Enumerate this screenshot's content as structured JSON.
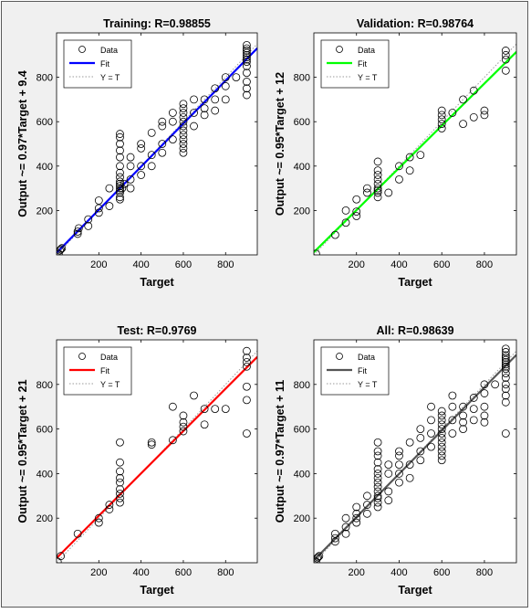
{
  "chart_data": [
    {
      "type": "scatter",
      "title": "Training: R=0.98855",
      "xlabel": "Target",
      "ylabel": "Output ~= 0.97*Target + 9.4",
      "xlim": [
        0,
        950
      ],
      "ylim": [
        0,
        1000
      ],
      "xticks": [
        "200",
        "400",
        "600",
        "800"
      ],
      "yticks": [
        "200",
        "400",
        "600",
        "800"
      ],
      "fit": {
        "slope": 0.97,
        "intercept": 9.4,
        "color": "#0000ff"
      },
      "legend": {
        "position": "top-left",
        "entries": [
          "Data",
          "Fit",
          "Y = T"
        ]
      },
      "points": [
        [
          10,
          5
        ],
        [
          15,
          20
        ],
        [
          20,
          25
        ],
        [
          25,
          30
        ],
        [
          100,
          95
        ],
        [
          100,
          105
        ],
        [
          105,
          120
        ],
        [
          150,
          130
        ],
        [
          150,
          160
        ],
        [
          200,
          190
        ],
        [
          200,
          210
        ],
        [
          200,
          245
        ],
        [
          250,
          220
        ],
        [
          250,
          300
        ],
        [
          300,
          250
        ],
        [
          300,
          260
        ],
        [
          300,
          280
        ],
        [
          300,
          290
        ],
        [
          300,
          300
        ],
        [
          300,
          310
        ],
        [
          300,
          320
        ],
        [
          300,
          330
        ],
        [
          300,
          350
        ],
        [
          300,
          370
        ],
        [
          300,
          400
        ],
        [
          300,
          440
        ],
        [
          300,
          470
        ],
        [
          300,
          500
        ],
        [
          300,
          530
        ],
        [
          300,
          545
        ],
        [
          310,
          300
        ],
        [
          320,
          320
        ],
        [
          350,
          300
        ],
        [
          350,
          340
        ],
        [
          350,
          400
        ],
        [
          350,
          440
        ],
        [
          400,
          360
        ],
        [
          400,
          400
        ],
        [
          400,
          480
        ],
        [
          400,
          500
        ],
        [
          450,
          400
        ],
        [
          450,
          450
        ],
        [
          450,
          550
        ],
        [
          500,
          460
        ],
        [
          500,
          500
        ],
        [
          500,
          580
        ],
        [
          500,
          600
        ],
        [
          550,
          520
        ],
        [
          550,
          600
        ],
        [
          550,
          640
        ],
        [
          600,
          460
        ],
        [
          600,
          480
        ],
        [
          600,
          500
        ],
        [
          600,
          520
        ],
        [
          600,
          540
        ],
        [
          600,
          560
        ],
        [
          600,
          580
        ],
        [
          600,
          600
        ],
        [
          600,
          620
        ],
        [
          600,
          640
        ],
        [
          600,
          660
        ],
        [
          600,
          680
        ],
        [
          650,
          580
        ],
        [
          650,
          640
        ],
        [
          650,
          700
        ],
        [
          700,
          630
        ],
        [
          700,
          660
        ],
        [
          700,
          700
        ],
        [
          750,
          650
        ],
        [
          750,
          700
        ],
        [
          750,
          750
        ],
        [
          800,
          700
        ],
        [
          800,
          760
        ],
        [
          800,
          800
        ],
        [
          850,
          800
        ],
        [
          900,
          720
        ],
        [
          900,
          750
        ],
        [
          900,
          780
        ],
        [
          900,
          820
        ],
        [
          900,
          850
        ],
        [
          900,
          870
        ],
        [
          900,
          880
        ],
        [
          900,
          890
        ],
        [
          900,
          900
        ],
        [
          900,
          910
        ],
        [
          900,
          920
        ],
        [
          900,
          930
        ],
        [
          900,
          945
        ]
      ]
    },
    {
      "type": "scatter",
      "title": "Validation: R=0.98764",
      "xlabel": "Target",
      "ylabel": "Output ~= 0.95*Target + 12",
      "xlim": [
        0,
        950
      ],
      "ylim": [
        0,
        1000
      ],
      "xticks": [
        "200",
        "400",
        "600",
        "800"
      ],
      "yticks": [
        "200",
        "400",
        "600",
        "800"
      ],
      "fit": {
        "slope": 0.95,
        "intercept": 12,
        "color": "#00ff00"
      },
      "legend": {
        "position": "top-left",
        "entries": [
          "Data",
          "Fit",
          "Y = T"
        ]
      },
      "points": [
        [
          10,
          5
        ],
        [
          100,
          90
        ],
        [
          150,
          145
        ],
        [
          150,
          200
        ],
        [
          200,
          175
        ],
        [
          200,
          195
        ],
        [
          200,
          250
        ],
        [
          250,
          280
        ],
        [
          250,
          300
        ],
        [
          300,
          260
        ],
        [
          300,
          280
        ],
        [
          300,
          290
        ],
        [
          300,
          300
        ],
        [
          300,
          320
        ],
        [
          300,
          340
        ],
        [
          300,
          360
        ],
        [
          300,
          380
        ],
        [
          300,
          420
        ],
        [
          350,
          280
        ],
        [
          400,
          340
        ],
        [
          400,
          400
        ],
        [
          450,
          380
        ],
        [
          450,
          440
        ],
        [
          500,
          450
        ],
        [
          600,
          570
        ],
        [
          600,
          590
        ],
        [
          600,
          610
        ],
        [
          600,
          630
        ],
        [
          600,
          650
        ],
        [
          650,
          640
        ],
        [
          700,
          590
        ],
        [
          700,
          700
        ],
        [
          750,
          620
        ],
        [
          750,
          740
        ],
        [
          800,
          630
        ],
        [
          800,
          650
        ],
        [
          900,
          830
        ],
        [
          900,
          880
        ],
        [
          900,
          900
        ],
        [
          900,
          920
        ]
      ]
    },
    {
      "type": "scatter",
      "title": "Test: R=0.9769",
      "xlabel": "Target",
      "ylabel": "Output ~= 0.95*Target + 21",
      "xlim": [
        0,
        950
      ],
      "ylim": [
        0,
        1000
      ],
      "xticks": [
        "200",
        "400",
        "600",
        "800"
      ],
      "yticks": [
        "200",
        "400",
        "600",
        "800"
      ],
      "fit": {
        "slope": 0.95,
        "intercept": 21,
        "color": "#ff0000"
      },
      "legend": {
        "position": "top-left",
        "entries": [
          "Data",
          "Fit",
          "Y = T"
        ]
      },
      "points": [
        [
          5,
          5
        ],
        [
          20,
          30
        ],
        [
          100,
          130
        ],
        [
          200,
          180
        ],
        [
          200,
          200
        ],
        [
          250,
          240
        ],
        [
          250,
          260
        ],
        [
          300,
          270
        ],
        [
          300,
          290
        ],
        [
          300,
          310
        ],
        [
          300,
          330
        ],
        [
          300,
          360
        ],
        [
          300,
          380
        ],
        [
          300,
          410
        ],
        [
          300,
          450
        ],
        [
          300,
          540
        ],
        [
          450,
          530
        ],
        [
          450,
          540
        ],
        [
          550,
          550
        ],
        [
          550,
          700
        ],
        [
          600,
          590
        ],
        [
          600,
          610
        ],
        [
          600,
          630
        ],
        [
          600,
          660
        ],
        [
          650,
          750
        ],
        [
          700,
          620
        ],
        [
          700,
          690
        ],
        [
          750,
          690
        ],
        [
          800,
          690
        ],
        [
          900,
          580
        ],
        [
          900,
          730
        ],
        [
          900,
          790
        ],
        [
          900,
          880
        ],
        [
          900,
          900
        ],
        [
          900,
          920
        ],
        [
          900,
          950
        ]
      ]
    },
    {
      "type": "scatter",
      "title": "All: R=0.98639",
      "xlabel": "Target",
      "ylabel": "Output ~= 0.97*Target + 11",
      "xlim": [
        0,
        950
      ],
      "ylim": [
        0,
        1000
      ],
      "xticks": [
        "200",
        "400",
        "600",
        "800"
      ],
      "yticks": [
        "200",
        "400",
        "600",
        "800"
      ],
      "fit": {
        "slope": 0.97,
        "intercept": 11,
        "color": "#555555"
      },
      "legend": {
        "position": "top-left",
        "entries": [
          "Data",
          "Fit",
          "Y = T"
        ]
      },
      "points": [
        [
          10,
          5
        ],
        [
          15,
          20
        ],
        [
          20,
          25
        ],
        [
          25,
          30
        ],
        [
          100,
          95
        ],
        [
          100,
          110
        ],
        [
          100,
          130
        ],
        [
          150,
          130
        ],
        [
          150,
          160
        ],
        [
          150,
          200
        ],
        [
          200,
          180
        ],
        [
          200,
          200
        ],
        [
          200,
          220
        ],
        [
          200,
          250
        ],
        [
          250,
          220
        ],
        [
          250,
          260
        ],
        [
          250,
          300
        ],
        [
          300,
          250
        ],
        [
          300,
          270
        ],
        [
          300,
          290
        ],
        [
          300,
          300
        ],
        [
          300,
          320
        ],
        [
          300,
          340
        ],
        [
          300,
          360
        ],
        [
          300,
          380
        ],
        [
          300,
          400
        ],
        [
          300,
          420
        ],
        [
          300,
          450
        ],
        [
          300,
          480
        ],
        [
          300,
          500
        ],
        [
          300,
          540
        ],
        [
          350,
          280
        ],
        [
          350,
          320
        ],
        [
          350,
          400
        ],
        [
          350,
          440
        ],
        [
          400,
          360
        ],
        [
          400,
          400
        ],
        [
          400,
          440
        ],
        [
          400,
          480
        ],
        [
          400,
          500
        ],
        [
          450,
          380
        ],
        [
          450,
          440
        ],
        [
          450,
          540
        ],
        [
          500,
          460
        ],
        [
          500,
          500
        ],
        [
          500,
          560
        ],
        [
          500,
          600
        ],
        [
          550,
          520
        ],
        [
          550,
          580
        ],
        [
          550,
          640
        ],
        [
          550,
          700
        ],
        [
          600,
          460
        ],
        [
          600,
          480
        ],
        [
          600,
          500
        ],
        [
          600,
          520
        ],
        [
          600,
          540
        ],
        [
          600,
          560
        ],
        [
          600,
          580
        ],
        [
          600,
          600
        ],
        [
          600,
          620
        ],
        [
          600,
          640
        ],
        [
          600,
          660
        ],
        [
          600,
          680
        ],
        [
          650,
          580
        ],
        [
          650,
          640
        ],
        [
          650,
          700
        ],
        [
          650,
          750
        ],
        [
          700,
          600
        ],
        [
          700,
          630
        ],
        [
          700,
          660
        ],
        [
          700,
          700
        ],
        [
          750,
          640
        ],
        [
          750,
          690
        ],
        [
          750,
          740
        ],
        [
          800,
          630
        ],
        [
          800,
          660
        ],
        [
          800,
          700
        ],
        [
          800,
          760
        ],
        [
          800,
          800
        ],
        [
          850,
          800
        ],
        [
          900,
          580
        ],
        [
          900,
          720
        ],
        [
          900,
          750
        ],
        [
          900,
          780
        ],
        [
          900,
          800
        ],
        [
          900,
          830
        ],
        [
          900,
          850
        ],
        [
          900,
          870
        ],
        [
          900,
          880
        ],
        [
          900,
          890
        ],
        [
          900,
          900
        ],
        [
          900,
          910
        ],
        [
          900,
          920
        ],
        [
          900,
          930
        ],
        [
          900,
          945
        ],
        [
          900,
          960
        ]
      ]
    }
  ]
}
